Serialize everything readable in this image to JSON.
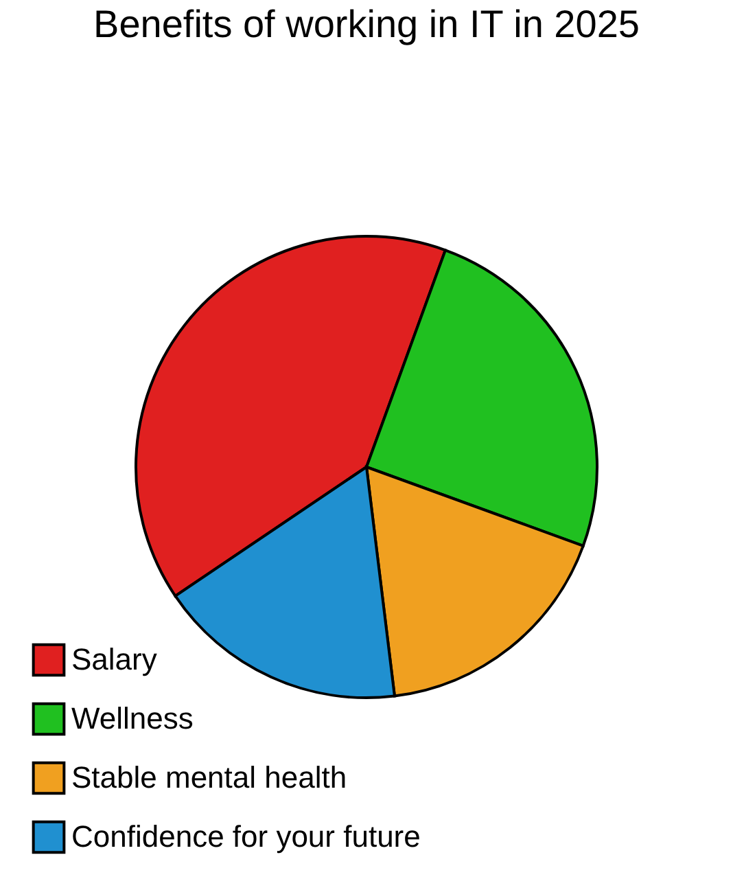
{
  "chart_data": {
    "type": "pie",
    "title": "Benefits of working in IT in 2025",
    "categories": [
      "Salary",
      "Wellness",
      "Stable mental health",
      "Confidence for your future"
    ],
    "values": [
      40,
      25,
      17.5,
      17.5
    ],
    "colors": [
      "#e02020",
      "#20c020",
      "#f0a020",
      "#2090d0"
    ],
    "legend": "bottom left"
  }
}
